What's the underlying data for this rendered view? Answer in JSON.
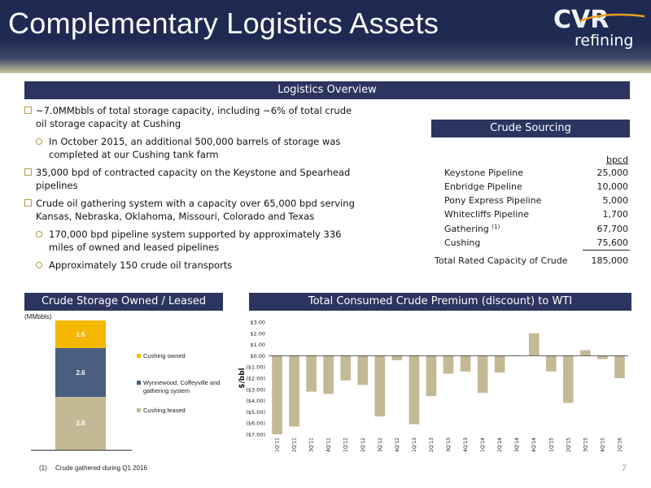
{
  "header": {
    "title": "Complementary Logistics Assets",
    "logo_text_1": "CVR",
    "logo_text_2": "refining"
  },
  "overview": {
    "heading": "Logistics Overview",
    "bullets": [
      {
        "level": 1,
        "text": "~7.0MMbbls of total storage capacity, including ~6% of total crude oil storage capacity at Cushing"
      },
      {
        "level": 2,
        "text": "In October 2015, an additional 500,000 barrels of storage was completed at our Cushing tank farm"
      },
      {
        "level": 1,
        "text": "35,000 bpd of contracted capacity on the Keystone and Spearhead pipelines"
      },
      {
        "level": 1,
        "text": "Crude oil gathering system with a capacity over 65,000 bpd serving Kansas, Nebraska, Oklahoma, Missouri, Colorado and Texas"
      },
      {
        "level": 2,
        "text": "170,000 bpd pipeline system supported by approximately 336 miles of owned and leased pipelines"
      },
      {
        "level": 2,
        "text": "Approximately 150 crude oil transports"
      }
    ]
  },
  "sourcing": {
    "heading": "Crude Sourcing",
    "unit_header": "bpcd",
    "rows": [
      {
        "name": "Keystone Pipeline",
        "value": "25,000"
      },
      {
        "name": "Enbridge Pipeline",
        "value": "10,000"
      },
      {
        "name": "Pony Express Pipeline",
        "value": "5,000"
      },
      {
        "name": "Whitecliffs Pipeline",
        "value": "1,700"
      },
      {
        "name": "Gathering",
        "sup": "(1)",
        "value": "67,700"
      },
      {
        "name": "Cushing",
        "value": "75,600"
      }
    ],
    "total": {
      "name": "Total Rated Capacity of Crude",
      "value": "185,000"
    }
  },
  "storage": {
    "heading": "Crude Storage Owned / Leased",
    "unit": "(MMbbls)",
    "colors": {
      "cushing_owned": "#f5b800",
      "wynnewood": "#4a5f80",
      "cushing_leased": "#c4b995"
    },
    "labels": {
      "cushing_owned": "Cushing owned",
      "wynnewood": "Wynnewood, Coffeyville and gathering system",
      "cushing_leased": "Cushing leased"
    },
    "values": {
      "cushing_owned": "1.5",
      "wynnewood": "2.6",
      "cushing_leased": "2.8"
    }
  },
  "premium": {
    "heading": "Total Consumed Crude Premium (discount) to WTI"
  },
  "chart_data": [
    {
      "type": "bar",
      "title": "Crude Storage Owned / Leased",
      "ylabel": "(MMbbls)",
      "categories": [
        ""
      ],
      "series": [
        {
          "name": "Cushing leased",
          "values": [
            2.8
          ]
        },
        {
          "name": "Wynnewood, Coffeyville and gathering system",
          "values": [
            2.6
          ]
        },
        {
          "name": "Cushing owned",
          "values": [
            1.5
          ]
        }
      ],
      "stacked": true
    },
    {
      "type": "bar",
      "title": "Total Consumed Crude Premium (discount) to WTI",
      "ylabel": "$/bbl",
      "ylim": [
        -7,
        3
      ],
      "yticks": [
        "$3.00",
        "$2.00",
        "$1.00",
        "$0.00",
        "($1.00)",
        "($2.00)",
        "($3.00)",
        "($4.00)",
        "($5.00)",
        "($6.00)",
        "($7.00)"
      ],
      "categories": [
        "1Q'11",
        "2Q'11",
        "3Q'11",
        "4Q'11",
        "1Q'12",
        "2Q'12",
        "3Q'12",
        "4Q'12",
        "1Q'13",
        "2Q'13",
        "3Q'13",
        "4Q'13",
        "1Q'14",
        "2Q'14",
        "3Q'14",
        "4Q'14",
        "1Q'15",
        "2Q'15",
        "3Q'15",
        "4Q'15",
        "1Q'16"
      ],
      "values": [
        -7.0,
        -6.3,
        -3.2,
        -3.4,
        -2.2,
        -2.6,
        -5.4,
        -0.4,
        -6.1,
        -3.6,
        -1.6,
        -1.4,
        -3.3,
        -1.5,
        0.05,
        2.0,
        -1.4,
        -4.2,
        0.5,
        -0.3,
        -2.0
      ],
      "color": "#c4b995"
    }
  ],
  "footnote": {
    "marker": "(1)",
    "text": "Crude gathered during Q1 2016"
  },
  "page_number": "7"
}
